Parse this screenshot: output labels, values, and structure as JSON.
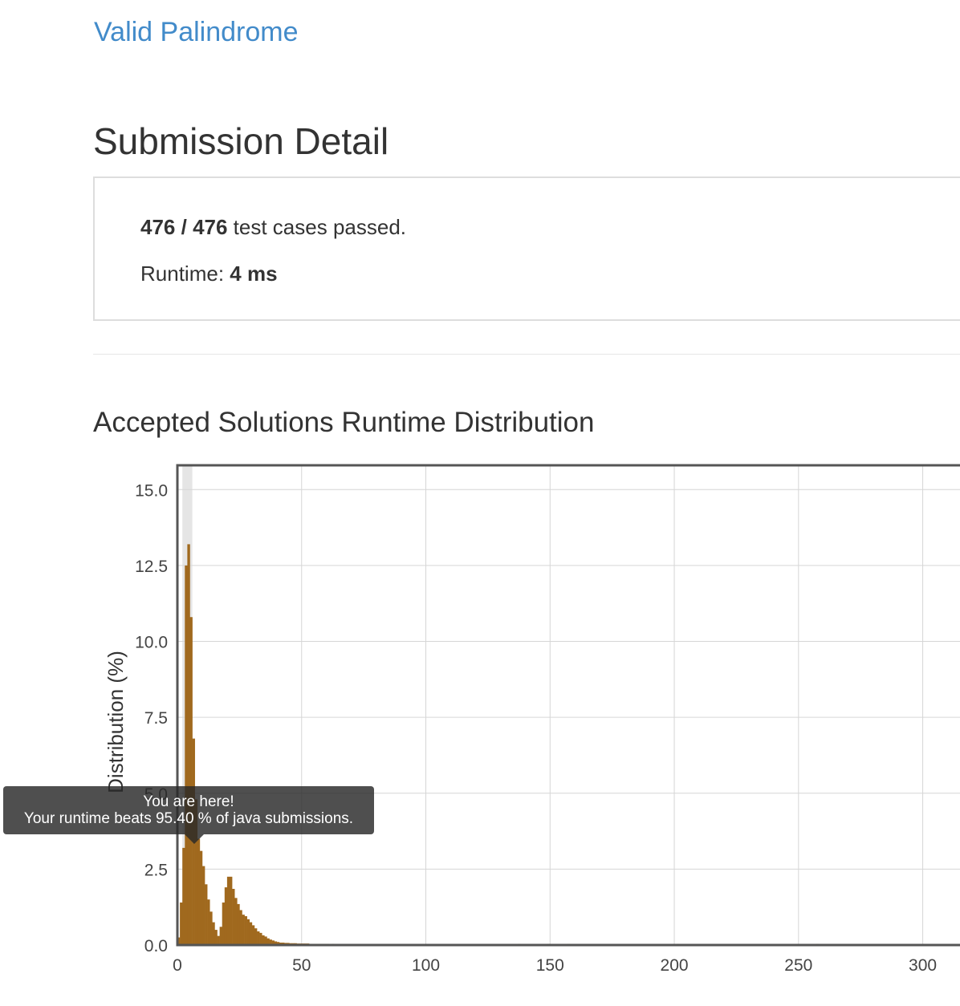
{
  "problem": {
    "title": "Valid Palindrome"
  },
  "page": {
    "title": "Submission Detail"
  },
  "result": {
    "passed": "476",
    "separator": " / ",
    "total": "476",
    "passed_suffix": " test cases passed.",
    "runtime_label": "Runtime: ",
    "runtime_value": "4 ms"
  },
  "section": {
    "heading": "Accepted Solutions Runtime Distribution"
  },
  "tooltip": {
    "line1": "You are here!",
    "line2": "Your runtime beats 95.40 % of java submissions."
  },
  "colors": {
    "bar": "#a0691e",
    "grid": "#d6d6d6",
    "frame": "#555555",
    "link": "#428bca",
    "highlight": "#e5e5e5"
  },
  "chart_data": {
    "type": "bar",
    "ylabel": "Distribution (%)",
    "xlabel": "",
    "title": "",
    "xlim": [
      0,
      315
    ],
    "ylim": [
      0,
      15.8
    ],
    "xticks": [
      0,
      50,
      100,
      150,
      200,
      250,
      300
    ],
    "xtick_labels": [
      "0",
      "50",
      "100",
      "150",
      "200",
      "250",
      "300"
    ],
    "yticks": [
      0,
      2.5,
      5,
      7.5,
      10,
      12.5,
      15
    ],
    "ytick_labels": [
      "0.0",
      "2.5",
      "5.0",
      "7.5",
      "10.0",
      "12.5",
      "15.0"
    ],
    "bin_width": 1,
    "highlight_range": [
      2,
      6
    ],
    "your_runtime": 4,
    "x": [
      0,
      1,
      2,
      3,
      4,
      5,
      6,
      7,
      8,
      9,
      10,
      11,
      12,
      13,
      14,
      15,
      16,
      17,
      18,
      19,
      20,
      21,
      22,
      23,
      24,
      25,
      26,
      27,
      28,
      29,
      30,
      31,
      32,
      33,
      34,
      35,
      36,
      37,
      38,
      39,
      40,
      41,
      42,
      43,
      44,
      45,
      46,
      47,
      48,
      49,
      50,
      51,
      52,
      53,
      54,
      55,
      56,
      57,
      58,
      59,
      60,
      62,
      64,
      66,
      68,
      70,
      72,
      74,
      76,
      78,
      80,
      82,
      84,
      86,
      88,
      90,
      92,
      102,
      107,
      124,
      128,
      132,
      137,
      141,
      145,
      149,
      153,
      157,
      161,
      165,
      169,
      173,
      177,
      181,
      185,
      189,
      193,
      197,
      201,
      205,
      209,
      213,
      217,
      221,
      225,
      229,
      233,
      237,
      241,
      245,
      249,
      253,
      257,
      261,
      265,
      269,
      273,
      277,
      281,
      285,
      289,
      293,
      297,
      301,
      305,
      309,
      313
    ],
    "values": [
      0.25,
      1.4,
      3.2,
      12.5,
      13.2,
      10.8,
      6.8,
      4.8,
      3.5,
      3.1,
      2.6,
      2.0,
      1.5,
      1.1,
      0.75,
      0.5,
      0.3,
      0.6,
      1.4,
      1.9,
      2.25,
      2.25,
      1.85,
      1.55,
      1.35,
      1.15,
      1.0,
      0.95,
      0.85,
      0.75,
      0.65,
      0.55,
      0.45,
      0.4,
      0.32,
      0.28,
      0.22,
      0.18,
      0.15,
      0.12,
      0.1,
      0.08,
      0.08,
      0.07,
      0.07,
      0.06,
      0.06,
      0.06,
      0.05,
      0.05,
      0.05,
      0.05,
      0.05,
      0.04,
      0.04,
      0.04,
      0.04,
      0.04,
      0.04,
      0.04,
      0.04,
      0.04,
      0.03,
      0.03,
      0.03,
      0.03,
      0.03,
      0.03,
      0.03,
      0.03,
      0.03,
      0.03,
      0.03,
      0.03,
      0.03,
      0.03,
      0.03,
      0.03,
      0.03,
      0.03,
      0.03,
      0.03,
      0.04,
      0.03,
      0.03,
      0.04,
      0.03,
      0.04,
      0.03,
      0.03,
      0.03,
      0.03,
      0.03,
      0.03,
      0.03,
      0.03,
      0.03,
      0.03,
      0.04,
      0.03,
      0.03,
      0.03,
      0.03,
      0.03,
      0.03,
      0.03,
      0.03,
      0.03,
      0.03,
      0.03,
      0.03,
      0.03,
      0.04,
      0.03,
      0.03,
      0.03,
      0.03,
      0.03,
      0.03,
      0.03,
      0.03,
      0.03,
      0.03,
      0.03,
      0.03,
      0.03,
      0.03
    ]
  }
}
